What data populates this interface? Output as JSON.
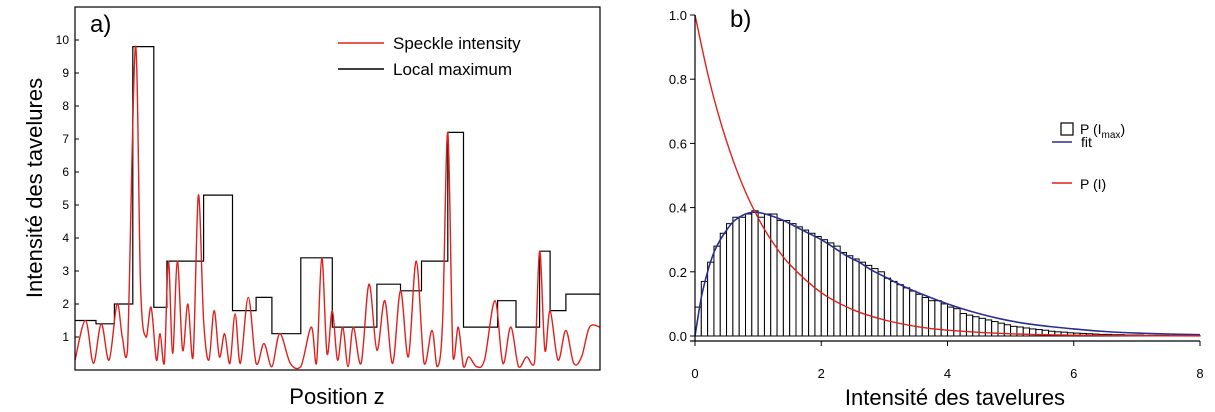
{
  "panels": [
    {
      "label": "a)",
      "xlabel": "Position z",
      "ylabel": "Intensité des tavelures",
      "legend": [
        {
          "name": "Speckle intensity",
          "color": "#e0201c"
        },
        {
          "name": "Local maximum",
          "color": "#000000"
        }
      ]
    },
    {
      "label": "b)",
      "xlabel": "Intensité des tavelures",
      "ylabel": "",
      "legend": [
        {
          "name": "P (I",
          "sub": "max",
          "tail": ")",
          "color": "#000000"
        },
        {
          "name": "fit",
          "color": "#2b2f8f"
        },
        {
          "name": "P (I)",
          "color": "#e0201c"
        }
      ]
    }
  ],
  "chart_data": [
    {
      "type": "line",
      "title": "",
      "xlabel": "Position z",
      "ylabel": "Intensité des tavelures",
      "ylim": [
        0,
        11
      ],
      "xlim": [
        0,
        1
      ],
      "yticks": [
        1,
        2,
        3,
        4,
        5,
        6,
        7,
        8,
        9,
        10
      ],
      "xticks": [],
      "legend_position": "top-right",
      "series": [
        {
          "name": "Local maximum",
          "color": "#000000",
          "shape": "step",
          "x": [
            0.0,
            0.04,
            0.075,
            0.11,
            0.15,
            0.175,
            0.2,
            0.245,
            0.3,
            0.345,
            0.375,
            0.4,
            0.43,
            0.49,
            0.535,
            0.575,
            0.62,
            0.66,
            0.71,
            0.74,
            0.805,
            0.84,
            0.885,
            0.905,
            0.935,
            0.965,
            0.985,
            1.0
          ],
          "y": [
            1.5,
            1.4,
            2.0,
            9.8,
            1.9,
            3.3,
            3.3,
            5.3,
            1.8,
            2.2,
            1.1,
            1.1,
            3.4,
            1.3,
            1.3,
            2.6,
            2.4,
            3.3,
            7.2,
            1.3,
            2.1,
            1.3,
            3.6,
            1.8,
            2.3,
            2.3,
            2.3,
            2.3
          ]
        },
        {
          "name": "Speckle intensity",
          "color": "#e0201c",
          "shape": "smooth",
          "x": [
            0.0,
            0.02,
            0.035,
            0.05,
            0.065,
            0.08,
            0.09,
            0.1,
            0.115,
            0.125,
            0.135,
            0.145,
            0.155,
            0.162,
            0.17,
            0.178,
            0.186,
            0.195,
            0.205,
            0.215,
            0.225,
            0.235,
            0.245,
            0.255,
            0.265,
            0.275,
            0.285,
            0.295,
            0.305,
            0.315,
            0.33,
            0.345,
            0.36,
            0.375,
            0.39,
            0.41,
            0.43,
            0.45,
            0.46,
            0.47,
            0.48,
            0.49,
            0.5,
            0.51,
            0.52,
            0.53,
            0.545,
            0.56,
            0.575,
            0.59,
            0.605,
            0.62,
            0.635,
            0.65,
            0.665,
            0.68,
            0.69,
            0.7,
            0.71,
            0.72,
            0.73,
            0.74,
            0.75,
            0.765,
            0.78,
            0.8,
            0.815,
            0.83,
            0.845,
            0.86,
            0.875,
            0.885,
            0.895,
            0.905,
            0.92,
            0.935,
            0.95,
            0.965,
            0.98,
            1.0
          ],
          "y": [
            0.3,
            1.5,
            0.2,
            1.4,
            0.3,
            2.0,
            1.0,
            0.6,
            9.8,
            2.5,
            1.0,
            1.9,
            0.3,
            1.1,
            0.2,
            3.3,
            0.5,
            3.3,
            0.6,
            2.0,
            0.4,
            5.3,
            1.5,
            0.3,
            1.8,
            0.4,
            1.1,
            0.2,
            1.7,
            0.2,
            2.2,
            0.2,
            0.8,
            0.1,
            1.1,
            0.2,
            0.1,
            1.3,
            0.2,
            3.4,
            0.5,
            1.8,
            0.3,
            1.3,
            0.1,
            1.3,
            0.2,
            2.6,
            0.6,
            2.1,
            0.2,
            2.4,
            0.4,
            3.3,
            0.2,
            1.2,
            0.1,
            1.4,
            7.2,
            0.4,
            1.3,
            0.1,
            0.4,
            0.1,
            0.3,
            2.1,
            0.2,
            1.3,
            0.1,
            0.4,
            0.2,
            3.6,
            0.6,
            1.8,
            0.3,
            1.2,
            0.2,
            0.4,
            1.3,
            1.3
          ]
        }
      ]
    },
    {
      "type": "bar",
      "title": "",
      "xlabel": "Intensité des tavelures",
      "ylabel": "",
      "xlim": [
        0,
        8
      ],
      "ylim": [
        0,
        1
      ],
      "xticks": [
        0,
        2,
        4,
        6,
        8
      ],
      "yticks": [
        0.0,
        0.2,
        0.4,
        0.6,
        0.8,
        1.0
      ],
      "legend_position": "top-right",
      "bin_width": 0.1,
      "series": [
        {
          "name": "P (Imax)",
          "color": "#000000",
          "bins_start": [
            0.0,
            0.1,
            0.2,
            0.3,
            0.4,
            0.5,
            0.6,
            0.7,
            0.8,
            0.9,
            1.0,
            1.1,
            1.2,
            1.3,
            1.4,
            1.5,
            1.6,
            1.7,
            1.8,
            1.9,
            2.0,
            2.1,
            2.2,
            2.3,
            2.4,
            2.5,
            2.6,
            2.7,
            2.8,
            2.9,
            3.0,
            3.1,
            3.2,
            3.3,
            3.4,
            3.5,
            3.6,
            3.7,
            3.8,
            3.9,
            4.0,
            4.1,
            4.2,
            4.3,
            4.4,
            4.5,
            4.6,
            4.7,
            4.8,
            4.9,
            5.0,
            5.1,
            5.2,
            5.3,
            5.4,
            5.5,
            5.6,
            5.7,
            5.8,
            5.9,
            6.0,
            6.1,
            6.2,
            6.3,
            6.4,
            6.5,
            6.6,
            6.7,
            6.8,
            6.9,
            7.0,
            7.1,
            7.2,
            7.3,
            7.4,
            7.5,
            7.6,
            7.7,
            7.8,
            7.9
          ],
          "values": [
            0.09,
            0.17,
            0.23,
            0.28,
            0.32,
            0.35,
            0.37,
            0.37,
            0.38,
            0.39,
            0.37,
            0.38,
            0.38,
            0.36,
            0.36,
            0.35,
            0.34,
            0.33,
            0.32,
            0.31,
            0.3,
            0.29,
            0.28,
            0.26,
            0.25,
            0.24,
            0.23,
            0.22,
            0.21,
            0.2,
            0.18,
            0.17,
            0.16,
            0.15,
            0.14,
            0.13,
            0.12,
            0.11,
            0.11,
            0.1,
            0.09,
            0.085,
            0.07,
            0.065,
            0.06,
            0.055,
            0.05,
            0.045,
            0.04,
            0.035,
            0.03,
            0.028,
            0.025,
            0.022,
            0.02,
            0.018,
            0.015,
            0.013,
            0.012,
            0.01,
            0.009,
            0.008,
            0.007,
            0.006,
            0.005,
            0.005,
            0.004,
            0.004,
            0.003,
            0.003,
            0.003,
            0.002,
            0.002,
            0.002,
            0.002,
            0.001,
            0.001,
            0.001,
            0.001,
            0.001
          ]
        },
        {
          "name": "fit",
          "color": "#2b2f8f",
          "x": [
            0.0,
            0.1,
            0.2,
            0.3,
            0.4,
            0.5,
            0.6,
            0.7,
            0.8,
            0.9,
            1.0,
            1.2,
            1.4,
            1.6,
            1.8,
            2.0,
            2.2,
            2.4,
            2.6,
            2.8,
            3.0,
            3.3,
            3.6,
            4.0,
            4.4,
            4.8,
            5.2,
            5.6,
            6.0,
            6.5,
            7.0,
            7.5,
            8.0
          ],
          "y": [
            0.0,
            0.12,
            0.2,
            0.26,
            0.3,
            0.33,
            0.355,
            0.37,
            0.38,
            0.385,
            0.385,
            0.375,
            0.36,
            0.34,
            0.32,
            0.3,
            0.275,
            0.25,
            0.23,
            0.205,
            0.185,
            0.155,
            0.13,
            0.1,
            0.075,
            0.055,
            0.04,
            0.03,
            0.022,
            0.014,
            0.009,
            0.006,
            0.004
          ]
        },
        {
          "name": "P (I)",
          "color": "#e0201c",
          "x": [
            0.0,
            0.2,
            0.4,
            0.6,
            0.8,
            1.0,
            1.2,
            1.5,
            2.0,
            2.5,
            3.0,
            3.5,
            4.0,
            5.0,
            6.0,
            7.0,
            8.0
          ],
          "y": [
            1.0,
            0.819,
            0.67,
            0.549,
            0.449,
            0.368,
            0.301,
            0.223,
            0.135,
            0.082,
            0.05,
            0.03,
            0.018,
            0.0067,
            0.0025,
            0.0009,
            0.0003
          ]
        }
      ]
    }
  ]
}
